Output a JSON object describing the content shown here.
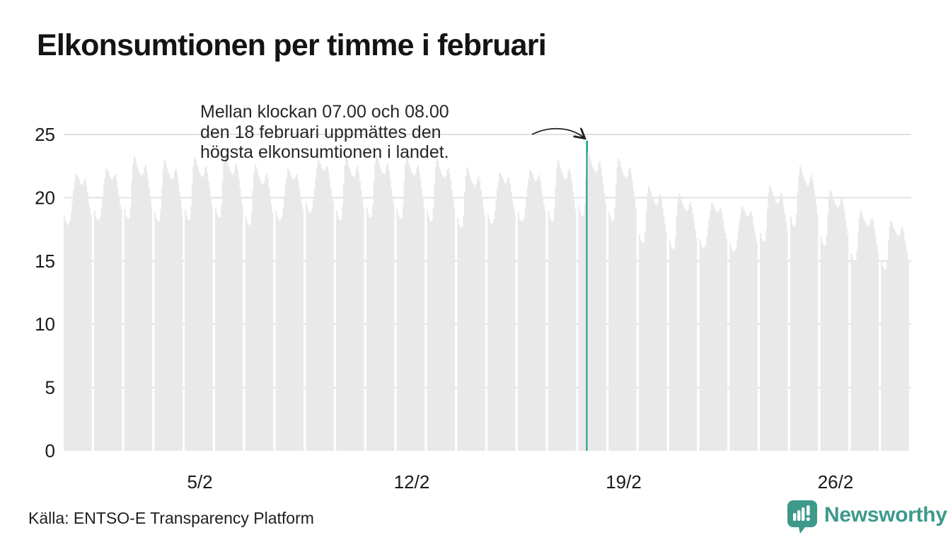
{
  "header": {
    "title": "Elkonsumtionen per timme i februari"
  },
  "annotation": {
    "lines": [
      "Mellan klockan 07.00 och 08.00",
      "den 18 februari uppmättes den",
      "högsta elkonsumtionen i landet."
    ]
  },
  "footer": {
    "source": "Källa: ENTSO-E Transparency Platform",
    "logo_text": "Newsworthy"
  },
  "colors": {
    "bar": "#e9e9ea",
    "highlight": "#0f9b84",
    "grid": "#e0e0e3",
    "text": "#1a1a1a",
    "arrow": "#222222",
    "logo": "#3d9a8b"
  },
  "chart_data": {
    "type": "bar",
    "title": "Elkonsumtionen per timme i februari",
    "xlabel": "",
    "ylabel": "",
    "ylim": [
      0,
      25
    ],
    "y_ticks": [
      0,
      5,
      10,
      15,
      20,
      25
    ],
    "x_ticks": [
      {
        "label": "5/2",
        "day": 5
      },
      {
        "label": "12/2",
        "day": 12
      },
      {
        "label": "19/2",
        "day": 19
      },
      {
        "label": "26/2",
        "day": 26
      }
    ],
    "grid": "horizontal",
    "legend": "none",
    "highlight": {
      "date": "18/2",
      "hour_index": 7,
      "hour_label": "07.00-08.00",
      "value": 24.5
    },
    "days": [
      {
        "date": "1/2",
        "hours": [
          18.6,
          18.2,
          18.0,
          17.8,
          18.0,
          18.2,
          18.8,
          19.7,
          20.6,
          21.2,
          21.9,
          21.8,
          21.6,
          21.4,
          21.1,
          21.0,
          21.1,
          21.4,
          21.5,
          21.0,
          20.4,
          19.7,
          19.2,
          18.7
        ]
      },
      {
        "date": "2/2",
        "hours": [
          19.0,
          18.5,
          18.3,
          18.2,
          18.3,
          18.5,
          19.2,
          20.1,
          21.0,
          21.6,
          22.3,
          22.2,
          22.0,
          21.7,
          21.5,
          21.4,
          21.5,
          21.7,
          21.9,
          21.4,
          20.7,
          20.1,
          19.5,
          19.1
        ]
      },
      {
        "date": "3/2",
        "hours": [
          19.1,
          18.6,
          18.4,
          18.3,
          18.4,
          19.3,
          21.2,
          22.6,
          23.3,
          23.1,
          22.7,
          22.4,
          22.1,
          21.9,
          21.8,
          21.7,
          21.9,
          22.4,
          22.6,
          22.1,
          21.4,
          20.7,
          20.0,
          19.3
        ]
      },
      {
        "date": "4/2",
        "hours": [
          18.9,
          18.4,
          18.2,
          18.1,
          18.2,
          19.1,
          20.9,
          22.3,
          23.0,
          22.8,
          22.4,
          22.1,
          21.9,
          21.6,
          21.5,
          21.4,
          21.6,
          22.1,
          22.3,
          21.9,
          21.2,
          20.5,
          19.8,
          19.1
        ]
      },
      {
        "date": "5/2",
        "hours": [
          19.0,
          18.6,
          18.3,
          18.2,
          18.3,
          19.3,
          21.1,
          22.5,
          23.2,
          23.0,
          22.6,
          22.3,
          22.0,
          21.8,
          21.7,
          21.6,
          21.8,
          22.3,
          22.5,
          22.0,
          21.3,
          20.6,
          20.0,
          19.3
        ]
      },
      {
        "date": "6/2",
        "hours": [
          19.2,
          18.7,
          18.5,
          18.4,
          18.5,
          19.4,
          21.3,
          22.7,
          23.4,
          23.2,
          22.8,
          22.5,
          22.2,
          22.0,
          21.9,
          21.8,
          22.0,
          22.5,
          22.7,
          22.2,
          21.5,
          20.8,
          20.1,
          19.4
        ]
      },
      {
        "date": "7/2",
        "hours": [
          18.5,
          18.1,
          17.9,
          17.7,
          17.9,
          18.8,
          20.6,
          21.9,
          22.6,
          22.4,
          22.0,
          21.7,
          21.5,
          21.2,
          21.1,
          21.0,
          21.2,
          21.7,
          21.9,
          21.5,
          20.8,
          20.1,
          19.4,
          18.8
        ]
      },
      {
        "date": "8/2",
        "hours": [
          19.0,
          18.5,
          18.3,
          18.2,
          18.3,
          18.5,
          19.2,
          20.1,
          21.0,
          21.6,
          22.3,
          22.2,
          22.0,
          21.7,
          21.5,
          21.4,
          21.5,
          21.7,
          21.9,
          21.4,
          20.7,
          20.1,
          19.5,
          19.1
        ]
      },
      {
        "date": "9/2",
        "hours": [
          19.6,
          19.1,
          18.9,
          18.7,
          18.9,
          19.1,
          19.8,
          20.7,
          21.6,
          22.3,
          23.0,
          22.9,
          22.7,
          22.4,
          22.2,
          22.1,
          22.2,
          22.4,
          22.5,
          22.1,
          21.4,
          20.7,
          20.1,
          19.7
        ]
      },
      {
        "date": "10/2",
        "hours": [
          19.0,
          18.6,
          18.3,
          18.2,
          18.3,
          19.3,
          21.1,
          22.5,
          23.2,
          23.0,
          22.6,
          22.3,
          22.0,
          21.8,
          21.7,
          21.6,
          21.8,
          22.3,
          22.5,
          22.0,
          21.3,
          20.6,
          20.0,
          19.3
        ]
      },
      {
        "date": "11/2",
        "hours": [
          19.2,
          18.7,
          18.5,
          18.4,
          18.5,
          19.4,
          21.3,
          22.7,
          23.4,
          23.2,
          22.8,
          22.5,
          22.2,
          22.0,
          21.9,
          21.8,
          22.0,
          22.5,
          22.7,
          22.2,
          21.5,
          20.8,
          20.1,
          19.4
        ]
      },
      {
        "date": "12/2",
        "hours": [
          19.1,
          18.6,
          18.4,
          18.3,
          18.4,
          19.3,
          21.2,
          22.6,
          23.3,
          23.1,
          22.7,
          22.4,
          22.1,
          21.9,
          21.8,
          21.7,
          21.9,
          22.4,
          22.6,
          22.1,
          21.4,
          20.7,
          20.0,
          19.3
        ]
      },
      {
        "date": "13/2",
        "hours": [
          18.9,
          18.5,
          18.2,
          18.1,
          18.2,
          19.2,
          21.0,
          22.4,
          23.1,
          22.9,
          22.5,
          22.2,
          21.9,
          21.7,
          21.6,
          21.5,
          21.7,
          22.2,
          22.4,
          21.9,
          21.3,
          20.6,
          19.9,
          19.2
        ]
      },
      {
        "date": "14/2",
        "hours": [
          18.4,
          17.9,
          17.7,
          17.6,
          17.7,
          18.6,
          20.4,
          21.7,
          22.4,
          22.2,
          21.8,
          21.5,
          21.3,
          21.1,
          20.9,
          20.8,
          21.1,
          21.5,
          21.7,
          21.3,
          20.6,
          19.9,
          19.3,
          18.6
        ]
      },
      {
        "date": "15/2",
        "hours": [
          18.7,
          18.3,
          18.0,
          17.9,
          18.0,
          18.3,
          18.9,
          19.8,
          20.7,
          21.3,
          22.0,
          21.9,
          21.7,
          21.5,
          21.2,
          21.1,
          21.2,
          21.5,
          21.6,
          21.1,
          20.5,
          19.8,
          19.3,
          18.8
        ]
      },
      {
        "date": "16/2",
        "hours": [
          18.9,
          18.4,
          18.2,
          18.1,
          18.2,
          18.4,
          19.1,
          20.0,
          20.9,
          21.5,
          22.2,
          22.1,
          21.9,
          21.6,
          21.4,
          21.3,
          21.4,
          21.6,
          21.8,
          21.3,
          20.6,
          20.0,
          19.4,
          19.0
        ]
      },
      {
        "date": "17/2",
        "hours": [
          18.9,
          18.4,
          18.2,
          18.1,
          18.2,
          19.1,
          20.9,
          22.3,
          23.0,
          22.8,
          22.4,
          22.1,
          21.9,
          21.6,
          21.5,
          21.4,
          21.6,
          22.1,
          22.3,
          21.9,
          21.2,
          20.5,
          19.8,
          19.1
        ]
      },
      {
        "date": "18/2",
        "hours": [
          19.4,
          18.9,
          18.6,
          18.5,
          18.6,
          19.6,
          21.5,
          24.5,
          23.6,
          23.4,
          23.0,
          22.7,
          22.4,
          22.2,
          22.1,
          21.9,
          22.2,
          22.7,
          22.9,
          22.4,
          21.7,
          21.0,
          20.3,
          19.6
        ]
      },
      {
        "date": "19/2",
        "hours": [
          18.9,
          18.5,
          18.2,
          18.1,
          18.2,
          19.2,
          21.0,
          22.4,
          23.1,
          22.9,
          22.5,
          22.2,
          21.9,
          21.7,
          21.6,
          21.5,
          21.7,
          22.2,
          22.4,
          21.9,
          21.3,
          20.6,
          19.9,
          19.2
        ]
      },
      {
        "date": "20/2",
        "hours": [
          17.1,
          16.7,
          16.5,
          16.4,
          16.5,
          17.3,
          19.0,
          20.3,
          20.9,
          20.7,
          20.4,
          20.1,
          19.9,
          19.6,
          19.5,
          19.4,
          19.6,
          20.1,
          20.3,
          19.9,
          19.2,
          18.6,
          18.0,
          17.3
        ]
      },
      {
        "date": "21/2",
        "hours": [
          16.6,
          16.2,
          16.0,
          15.9,
          16.0,
          16.8,
          18.5,
          19.7,
          20.3,
          20.1,
          19.8,
          19.5,
          19.3,
          19.1,
          19.0,
          18.9,
          19.1,
          19.5,
          19.7,
          19.3,
          18.7,
          18.1,
          17.5,
          16.8
        ]
      },
      {
        "date": "22/2",
        "hours": [
          16.7,
          16.3,
          16.1,
          16.0,
          16.1,
          16.3,
          16.9,
          17.6,
          18.4,
          19.0,
          19.6,
          19.5,
          19.3,
          19.1,
          18.9,
          18.8,
          18.9,
          19.1,
          19.2,
          18.8,
          18.2,
          17.6,
          17.2,
          16.8
        ]
      },
      {
        "date": "23/2",
        "hours": [
          16.4,
          16.0,
          15.8,
          15.7,
          15.8,
          16.0,
          16.6,
          17.4,
          18.1,
          18.7,
          19.3,
          19.2,
          19.0,
          18.8,
          18.6,
          18.5,
          18.6,
          18.8,
          18.9,
          18.5,
          17.9,
          17.4,
          16.9,
          16.5
        ]
      },
      {
        "date": "24/2",
        "hours": [
          17.2,
          16.8,
          16.6,
          16.5,
          16.6,
          17.4,
          19.1,
          20.4,
          21.0,
          20.8,
          20.5,
          20.2,
          20.0,
          19.7,
          19.6,
          19.5,
          19.7,
          20.2,
          20.4,
          20.0,
          19.3,
          18.7,
          18.1,
          17.4
        ]
      },
      {
        "date": "25/2",
        "hours": [
          18.5,
          18.0,
          17.8,
          17.7,
          17.8,
          18.7,
          20.5,
          21.8,
          22.5,
          22.3,
          21.9,
          21.6,
          21.4,
          21.2,
          21.0,
          20.9,
          21.2,
          21.6,
          21.8,
          21.4,
          20.7,
          20.0,
          19.4,
          18.7
        ]
      },
      {
        "date": "26/2",
        "hours": [
          16.9,
          16.5,
          16.3,
          16.2,
          16.3,
          17.1,
          18.7,
          20.0,
          20.6,
          20.4,
          20.1,
          19.8,
          19.6,
          19.4,
          19.3,
          19.2,
          19.4,
          19.8,
          20.0,
          19.6,
          19.0,
          18.3,
          17.7,
          17.1
        ]
      },
      {
        "date": "27/2",
        "hours": [
          15.6,
          15.2,
          15.0,
          14.9,
          15.0,
          15.8,
          17.3,
          18.4,
          19.0,
          18.8,
          18.5,
          18.2,
          18.1,
          17.9,
          17.8,
          17.7,
          17.9,
          18.2,
          18.4,
          18.1,
          17.5,
          16.9,
          16.3,
          15.8
        ]
      },
      {
        "date": "28/2",
        "hours": [
          14.9,
          14.6,
          14.4,
          14.3,
          14.4,
          15.1,
          16.6,
          17.7,
          18.2,
          18.0,
          17.7,
          17.5,
          17.3,
          17.1,
          17.0,
          16.9,
          17.1,
          17.5,
          17.7,
          17.3,
          16.7,
          16.2,
          15.7,
          15.1
        ]
      }
    ]
  }
}
